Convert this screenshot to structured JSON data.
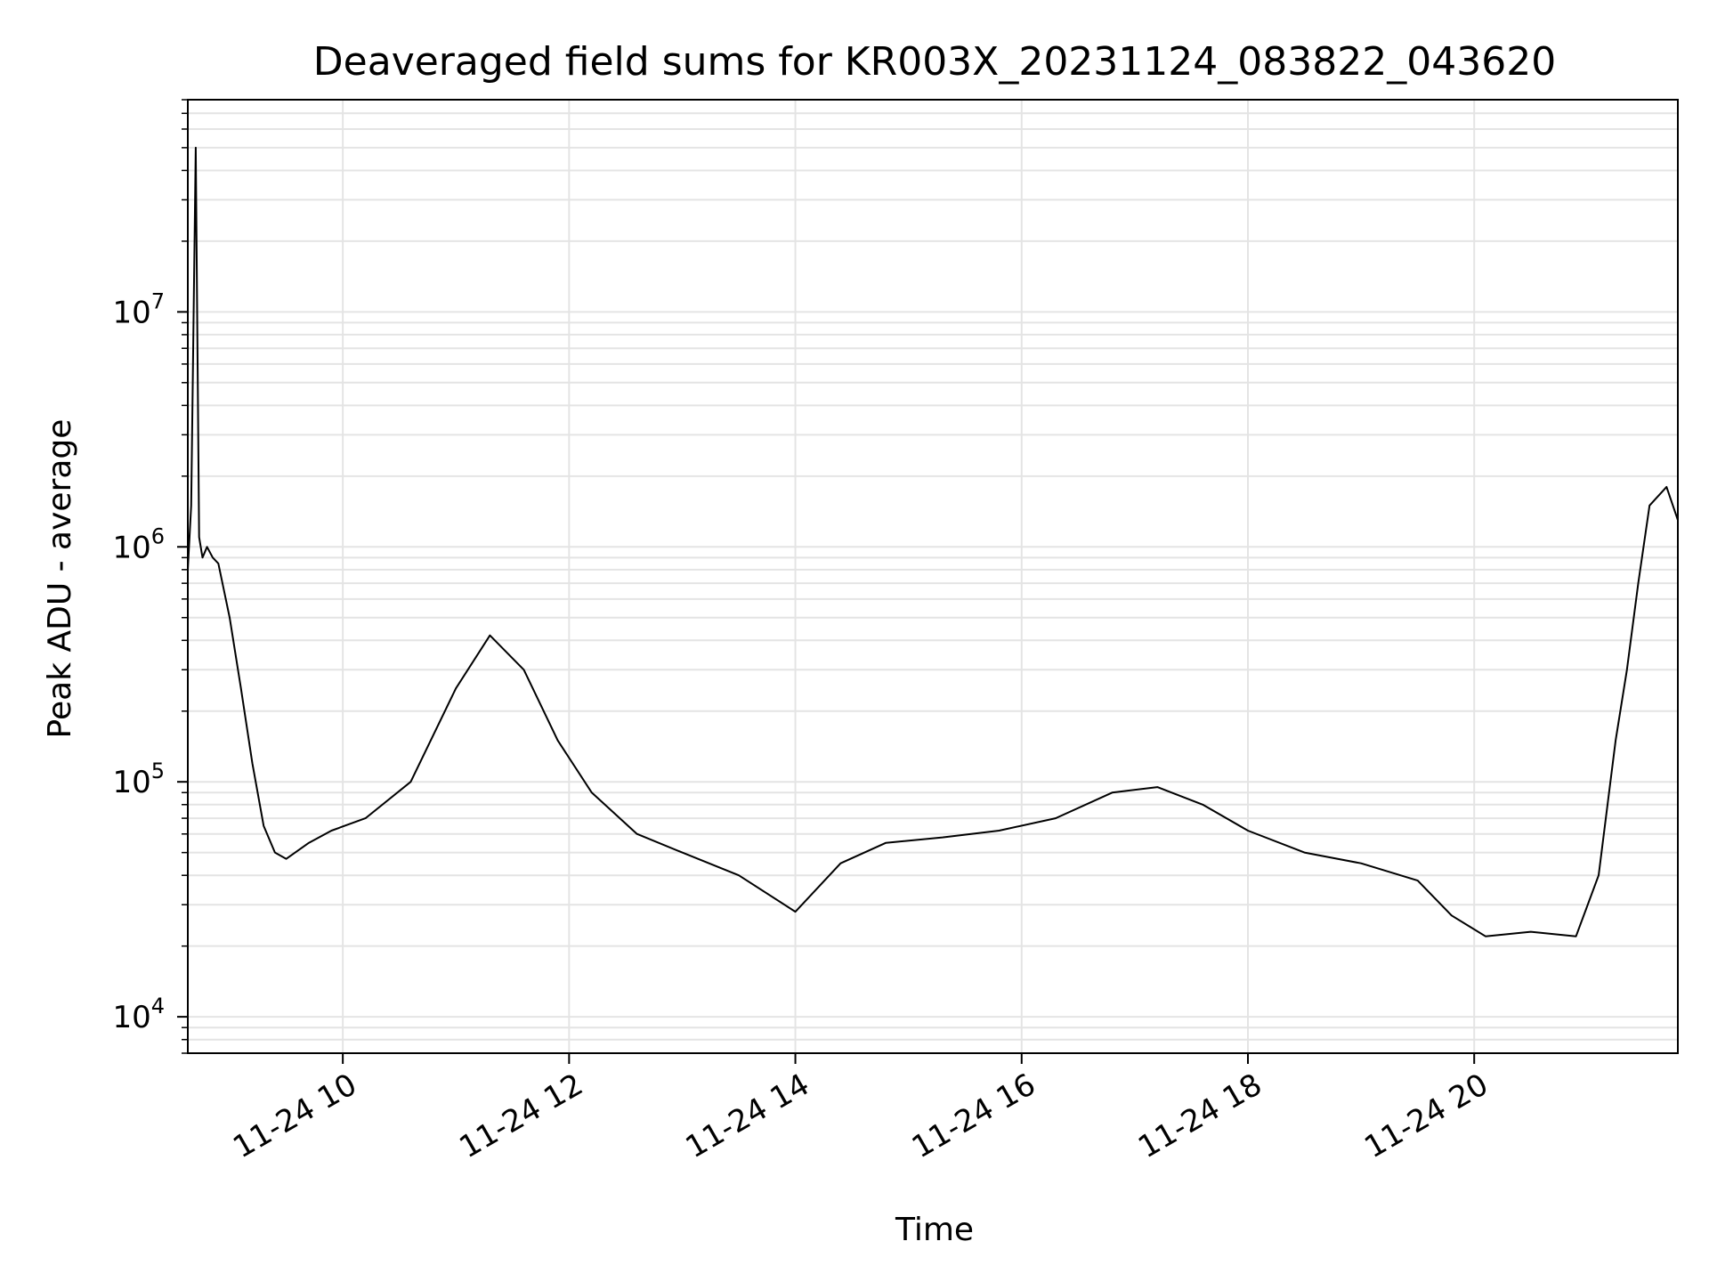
{
  "chart_data": {
    "type": "line",
    "title": "Deaveraged field sums for KR003X_20231124_083822_043620",
    "xlabel": "Time",
    "ylabel": "Peak ADU - average",
    "x_ticks": [
      "11-24 10",
      "11-24 12",
      "11-24 14",
      "11-24 16",
      "11-24 18",
      "11-24 20"
    ],
    "x_tick_hours": [
      10,
      12,
      14,
      16,
      18,
      20
    ],
    "xlim": [
      "2023-11-24 08:38",
      "2023-11-24 21:48"
    ],
    "xlim_hours": [
      8.63,
      21.8
    ],
    "y_scale": "log",
    "ylim": [
      7000,
      80000000
    ],
    "y_ticks": [
      {
        "base": "10",
        "exp": "4",
        "value": 10000
      },
      {
        "base": "10",
        "exp": "5",
        "value": 100000
      },
      {
        "base": "10",
        "exp": "6",
        "value": 1000000
      },
      {
        "base": "10",
        "exp": "7",
        "value": 10000000
      }
    ],
    "grid": true,
    "grid_color": "#e4e4e4",
    "line_color": "#000000",
    "series": [
      {
        "x_hours": [
          8.63,
          8.66,
          8.7,
          8.73,
          8.76,
          8.8,
          8.85,
          8.9,
          9.0,
          9.1,
          9.2,
          9.3,
          9.4,
          9.5,
          9.7,
          9.9,
          10.2,
          10.6,
          11.0,
          11.3,
          11.6,
          11.9,
          12.2,
          12.6,
          13.0,
          13.5,
          14.0,
          14.4,
          14.8,
          15.3,
          15.8,
          16.3,
          16.8,
          17.2,
          17.6,
          18.0,
          18.5,
          19.0,
          19.5,
          19.8,
          20.1,
          20.5,
          20.9,
          21.1,
          21.25,
          21.35,
          21.45,
          21.55,
          21.7,
          21.8
        ],
        "y_values": [
          800000,
          1500000,
          50000000,
          1100000,
          900000,
          1000000,
          900000,
          850000,
          500000,
          250000,
          120000,
          65000,
          50000,
          47000,
          55000,
          62000,
          70000,
          100000,
          250000,
          420000,
          300000,
          150000,
          90000,
          60000,
          50000,
          40000,
          28000,
          45000,
          55000,
          58000,
          62000,
          70000,
          90000,
          95000,
          80000,
          62000,
          50000,
          45000,
          38000,
          27000,
          22000,
          23000,
          22000,
          40000,
          150000,
          300000,
          700000,
          1500000,
          1800000,
          1300000
        ]
      }
    ]
  }
}
